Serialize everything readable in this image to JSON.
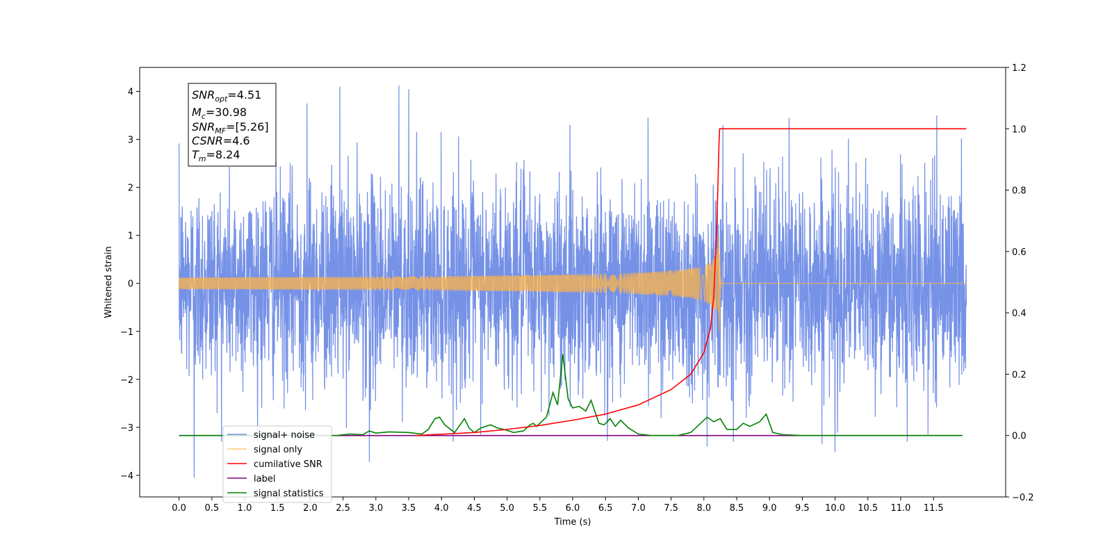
{
  "chart_data": {
    "type": "line",
    "title": "",
    "xlabel": "Time (s)",
    "ylabel": "Whitened strain",
    "ylabel_right": "",
    "xlim": [
      -0.6,
      12.6
    ],
    "ylim": [
      -4.45,
      4.5
    ],
    "ylim_right": [
      -0.2,
      1.2
    ],
    "x_ticks": [
      0.0,
      0.5,
      1.0,
      1.5,
      2.0,
      2.5,
      3.0,
      3.5,
      4.0,
      4.5,
      5.0,
      5.5,
      6.0,
      6.5,
      7.0,
      7.5,
      8.0,
      8.5,
      9.0,
      9.5,
      10.0,
      10.5,
      11.0,
      11.5
    ],
    "x_tick_labels": [
      "0.0",
      "0.5",
      "1.0",
      "1.5",
      "2.0",
      "2.5",
      "3.0",
      "3.5",
      "4.0",
      "4.5",
      "5.0",
      "5.5",
      "6.0",
      "6.5",
      "7.0",
      "7.5",
      "8.0",
      "8.5",
      "9.0",
      "9.5",
      "10.0",
      "10.5",
      "11.0",
      "11.5"
    ],
    "y_ticks": [
      -4,
      -3,
      -2,
      -1,
      0,
      1,
      2,
      3,
      4
    ],
    "y_tick_labels": [
      "−4",
      "−3",
      "−2",
      "−1",
      "0",
      "1",
      "2",
      "3",
      "4"
    ],
    "y_ticks_right": [
      -0.2,
      0.0,
      0.2,
      0.4,
      0.6,
      0.8,
      1.0,
      1.2
    ],
    "y_tick_labels_right": [
      "−0.2",
      "0.0",
      "0.2",
      "0.4",
      "0.6",
      "0.8",
      "1.0",
      "1.2"
    ],
    "grid": false,
    "legend_position": "lower-left",
    "series": [
      {
        "name": "signal+ noise",
        "axis": "left",
        "color": "#6f8ce6",
        "kind": "noise",
        "x_range": [
          0.0,
          12.0
        ],
        "core_amplitude": [
          -2.5,
          2.5
        ],
        "peaks": [
          [
            0.23,
            -4.05
          ],
          [
            2.45,
            4.1
          ],
          [
            3.35,
            4.12
          ],
          [
            3.5,
            4.05
          ],
          [
            1.95,
            3.75
          ],
          [
            7.15,
            3.45
          ],
          [
            9.3,
            3.45
          ],
          [
            11.55,
            3.5
          ],
          [
            2.9,
            -3.72
          ],
          [
            8.05,
            -3.4
          ],
          [
            10.0,
            -3.52
          ],
          [
            9.8,
            -3.35
          ],
          [
            11.1,
            -3.3
          ]
        ]
      },
      {
        "name": "signal only",
        "axis": "left",
        "color": "#ffb347",
        "kind": "chirp",
        "merger_time": 8.24,
        "peak_amplitude": 1.0
      },
      {
        "name": "cumilative SNR",
        "axis": "right",
        "color": "#ff0000",
        "points": [
          [
            3.6,
            0.0
          ],
          [
            4.5,
            0.01
          ],
          [
            5.0,
            0.02
          ],
          [
            5.5,
            0.033
          ],
          [
            6.0,
            0.05
          ],
          [
            6.5,
            0.07
          ],
          [
            7.0,
            0.1
          ],
          [
            7.5,
            0.15
          ],
          [
            7.8,
            0.2
          ],
          [
            8.0,
            0.27
          ],
          [
            8.1,
            0.35
          ],
          [
            8.15,
            0.45
          ],
          [
            8.2,
            0.7
          ],
          [
            8.23,
            0.95
          ],
          [
            8.24,
            1.0
          ],
          [
            12.0,
            1.0
          ]
        ]
      },
      {
        "name": "label",
        "axis": "right",
        "color": "#800080",
        "points": [
          [
            0.0,
            0.0
          ],
          [
            11.94,
            0.0
          ]
        ]
      },
      {
        "name": "signal statistics",
        "axis": "right",
        "color": "#008000",
        "points": [
          [
            0.0,
            0.0
          ],
          [
            2.4,
            0.0
          ],
          [
            2.6,
            0.005
          ],
          [
            2.8,
            0.003
          ],
          [
            2.9,
            0.015
          ],
          [
            3.0,
            0.008
          ],
          [
            3.2,
            0.012
          ],
          [
            3.5,
            0.01
          ],
          [
            3.7,
            0.005
          ],
          [
            3.8,
            0.02
          ],
          [
            3.9,
            0.055
          ],
          [
            3.97,
            0.06
          ],
          [
            4.05,
            0.035
          ],
          [
            4.2,
            0.01
          ],
          [
            4.3,
            0.04
          ],
          [
            4.35,
            0.055
          ],
          [
            4.42,
            0.025
          ],
          [
            4.5,
            0.01
          ],
          [
            4.6,
            0.025
          ],
          [
            4.75,
            0.035
          ],
          [
            4.85,
            0.025
          ],
          [
            4.95,
            0.02
          ],
          [
            5.1,
            0.01
          ],
          [
            5.25,
            0.015
          ],
          [
            5.35,
            0.035
          ],
          [
            5.4,
            0.04
          ],
          [
            5.45,
            0.03
          ],
          [
            5.6,
            0.06
          ],
          [
            5.7,
            0.14
          ],
          [
            5.77,
            0.1
          ],
          [
            5.85,
            0.265
          ],
          [
            5.93,
            0.12
          ],
          [
            6.0,
            0.09
          ],
          [
            6.1,
            0.095
          ],
          [
            6.2,
            0.08
          ],
          [
            6.28,
            0.115
          ],
          [
            6.32,
            0.09
          ],
          [
            6.4,
            0.04
          ],
          [
            6.48,
            0.035
          ],
          [
            6.57,
            0.055
          ],
          [
            6.65,
            0.03
          ],
          [
            6.73,
            0.05
          ],
          [
            6.85,
            0.025
          ],
          [
            7.0,
            0.005
          ],
          [
            7.2,
            0.0
          ],
          [
            7.6,
            0.0
          ],
          [
            7.8,
            0.01
          ],
          [
            8.05,
            0.06
          ],
          [
            8.15,
            0.045
          ],
          [
            8.25,
            0.055
          ],
          [
            8.35,
            0.02
          ],
          [
            8.5,
            0.02
          ],
          [
            8.6,
            0.04
          ],
          [
            8.7,
            0.03
          ],
          [
            8.85,
            0.045
          ],
          [
            8.95,
            0.07
          ],
          [
            9.05,
            0.01
          ],
          [
            9.2,
            0.003
          ],
          [
            9.5,
            0.0
          ],
          [
            11.94,
            0.0
          ]
        ]
      }
    ],
    "annotation_box": {
      "lines": [
        {
          "base": "SNR",
          "sub": "opt",
          "value": "=4.51"
        },
        {
          "base": "M",
          "sub": "c",
          "value": "=30.98"
        },
        {
          "base": "SNR",
          "sub": "MF",
          "value": "=[5.26]"
        },
        {
          "base": "CSNR",
          "sub": "",
          "value": "=4.6"
        },
        {
          "base": "T",
          "sub": "m",
          "value": "=8.24"
        }
      ]
    }
  }
}
